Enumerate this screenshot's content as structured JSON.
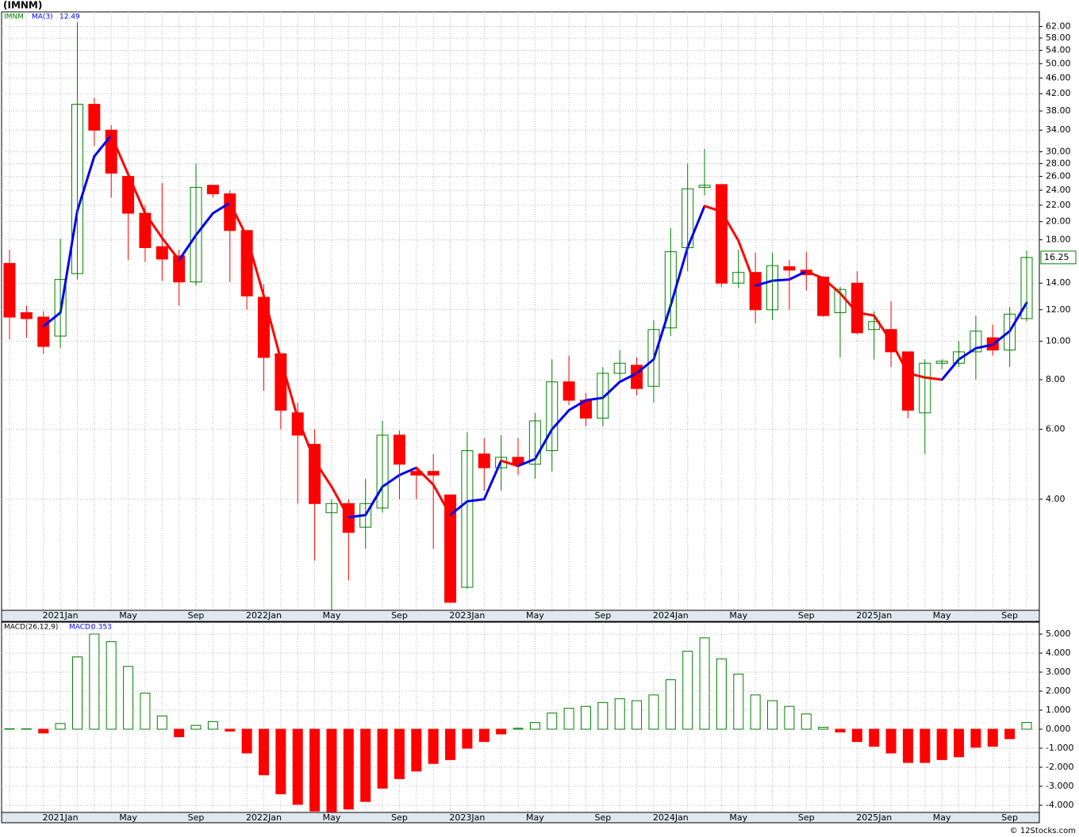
{
  "chart_data": [
    {
      "type": "candlestick",
      "title": "(IMNM)",
      "name": "IMNM",
      "categories": [
        null,
        null,
        null,
        "2021Jan",
        null,
        null,
        null,
        "May",
        null,
        null,
        null,
        "Sep",
        null,
        null,
        null,
        "2022Jan",
        null,
        null,
        null,
        "May",
        null,
        null,
        null,
        "Sep",
        null,
        null,
        null,
        "2023Jan",
        null,
        null,
        null,
        "May",
        null,
        null,
        null,
        "Sep",
        null,
        null,
        null,
        "2024Jan",
        null,
        null,
        null,
        "May",
        null,
        null,
        null,
        "Sep",
        null,
        null,
        null,
        "2025Jan",
        null,
        null,
        null,
        "May",
        null,
        null,
        null,
        "Sep",
        null
      ],
      "open": [
        15.7,
        11.8,
        11.5,
        10.3,
        14.8,
        39.5,
        34,
        26,
        21,
        17.3,
        16.4,
        14.1,
        24.7,
        23.5,
        19,
        12.9,
        9.3,
        6.6,
        5.5,
        3.7,
        3.9,
        3.4,
        3.8,
        5.8,
        4.7,
        4.7,
        4.1,
        2.4,
        5.2,
        4.8,
        5.1,
        4.9,
        5.3,
        7.9,
        7.1,
        6.4,
        8.3,
        8.7,
        7.7,
        10.8,
        17.2,
        24.4,
        24.8,
        14,
        14.9,
        12,
        15.4,
        15.1,
        14.5,
        11.8,
        14,
        10.7,
        10.7,
        9.4,
        6.6,
        8.8,
        8.8,
        9.4,
        10.2,
        9.5,
        11.4
      ],
      "high": [
        17,
        12.3,
        11.9,
        18.1,
        63.5,
        41,
        35,
        26.8,
        22,
        25,
        17,
        28,
        24.7,
        24,
        19,
        13.9,
        9.3,
        7,
        6,
        4.0,
        4.0,
        4.5,
        6.3,
        5.95,
        4.8,
        5.2,
        4.1,
        5.9,
        5.7,
        5.8,
        5.7,
        6.6,
        9,
        9.2,
        7.4,
        8.6,
        9.5,
        9.1,
        11.3,
        19.3,
        28,
        30.5,
        24.8,
        17,
        16.7,
        16.7,
        16,
        16.8,
        14.6,
        13.7,
        15,
        11.9,
        12.6,
        9.4,
        9,
        9.0,
        10,
        11.6,
        11,
        12.2,
        16.9
      ],
      "low": [
        10.1,
        10.2,
        9.3,
        9.6,
        14.3,
        31,
        23,
        16,
        15.8,
        14.2,
        12.3,
        13.8,
        23,
        14.1,
        12,
        7.5,
        6,
        3.9,
        2.8,
        2.1,
        2.5,
        3.0,
        3.7,
        4.0,
        4.0,
        3.0,
        2.19,
        2.38,
        4.2,
        4.2,
        4.6,
        4.5,
        4.7,
        6.9,
        6.1,
        6.1,
        8.0,
        7.3,
        7.0,
        10.3,
        15,
        23.3,
        13.7,
        13.6,
        11.1,
        11.3,
        12,
        13.4,
        11.5,
        9.1,
        10.4,
        9.0,
        8.6,
        6.4,
        5.2,
        8.5,
        8.6,
        8.0,
        9.2,
        8.6,
        11.2
      ],
      "close": [
        11.5,
        11.4,
        9.7,
        14.3,
        39.5,
        34,
        26.5,
        21,
        17.2,
        16.1,
        14.1,
        24.4,
        23.5,
        19,
        13,
        9.1,
        6.7,
        5.8,
        3.9,
        3.9,
        3.3,
        3.9,
        5.8,
        4.9,
        4.6,
        4.6,
        2.2,
        5.3,
        4.8,
        5.1,
        4.9,
        6.3,
        7.9,
        7.1,
        6.4,
        8.3,
        8.8,
        7.6,
        10.7,
        16.8,
        24.2,
        24.7,
        14,
        14.9,
        12,
        15.5,
        15.1,
        14.7,
        11.6,
        13.5,
        10.5,
        11.2,
        9.4,
        6.7,
        8.8,
        8.9,
        9.4,
        10.6,
        9.5,
        11.7,
        16.25
      ],
      "up_color": "#008000",
      "down_color": "#ff0000",
      "ma": {
        "name": "MA(3)",
        "up_color": "#0000ee",
        "down_color": "#ff0000",
        "values": [
          null,
          null,
          10.9,
          11.8,
          21.3,
          29.2,
          33,
          26.3,
          21,
          18.2,
          16,
          18.5,
          21,
          22.3,
          18.3,
          13,
          9,
          6.4,
          5.0,
          4.3,
          3.6,
          3.65,
          4.3,
          4.6,
          4.8,
          4.35,
          3.65,
          3.95,
          4.0,
          5.0,
          4.85,
          5.05,
          6.0,
          6.7,
          7.1,
          7.2,
          7.9,
          8.3,
          9,
          12.3,
          17.2,
          21.9,
          21.2,
          17.9,
          13.8,
          14.2,
          14.3,
          15,
          14.4,
          13.2,
          11.8,
          11.6,
          10,
          8.3,
          8.1,
          8.0,
          9,
          9.6,
          9.8,
          10.6,
          12.49
        ]
      },
      "log_scale": true,
      "grid": true,
      "ylim": [
        2.1,
        67.5
      ],
      "yticks": [
        {
          "value": 4,
          "label": "4.00"
        },
        {
          "value": 6,
          "label": "6.00"
        },
        {
          "value": 8,
          "label": "8.00"
        },
        {
          "value": 10,
          "label": "10.00"
        },
        {
          "value": 12,
          "label": "12.00"
        },
        {
          "value": 14,
          "label": "14.00"
        },
        {
          "value": 18,
          "label": "18.00"
        },
        {
          "value": 20,
          "label": "20.00"
        },
        {
          "value": 22,
          "label": "22.00"
        },
        {
          "value": 24,
          "label": "24.00"
        },
        {
          "value": 26,
          "label": "26.00"
        },
        {
          "value": 28,
          "label": "28.00"
        },
        {
          "value": 30,
          "label": "30.00"
        },
        {
          "value": 34,
          "label": "34.00"
        },
        {
          "value": 38,
          "label": "38.00"
        },
        {
          "value": 42,
          "label": "42.00"
        },
        {
          "value": 46,
          "label": "46.00"
        },
        {
          "value": 50,
          "label": "50.00"
        },
        {
          "value": 54,
          "label": "54.00"
        },
        {
          "value": 58,
          "label": "58.00"
        },
        {
          "value": 62,
          "label": "62.00"
        }
      ]
    },
    {
      "type": "bar",
      "name": "MACD(26,12,9)",
      "value_name": "MACD:",
      "values": [
        0.02,
        0.02,
        -0.2,
        0.3,
        3.8,
        5.0,
        4.6,
        3.3,
        1.9,
        0.7,
        -0.4,
        0.2,
        0.4,
        -0.1,
        -1.25,
        -2.4,
        -3.4,
        -3.95,
        -4.3,
        -4.35,
        -4.2,
        -3.8,
        -3.1,
        -2.6,
        -2.2,
        -1.8,
        -1.6,
        -1.0,
        -0.65,
        -0.25,
        0.05,
        0.35,
        0.85,
        1.1,
        1.2,
        1.4,
        1.6,
        1.5,
        1.8,
        2.6,
        4.1,
        4.8,
        3.7,
        2.9,
        1.8,
        1.5,
        1.2,
        0.8,
        0.1,
        -0.15,
        -0.65,
        -0.9,
        -1.25,
        -1.75,
        -1.75,
        -1.6,
        -1.45,
        -0.95,
        -0.9,
        -0.5,
        0.353
      ],
      "up_color": "#008000",
      "down_color": "#ff0000",
      "grid": true,
      "ylim": [
        -4.375,
        5.625
      ],
      "yticks": [
        {
          "value": -4,
          "label": "-4.000"
        },
        {
          "value": -3,
          "label": "-3.000"
        },
        {
          "value": -2,
          "label": "-2.000"
        },
        {
          "value": -1,
          "label": "-1.000"
        },
        {
          "value": 0,
          "label": "0.000"
        },
        {
          "value": 1,
          "label": "1.000"
        },
        {
          "value": 2,
          "label": "2.000"
        },
        {
          "value": 3,
          "label": "3.000"
        },
        {
          "value": 4,
          "label": "4.000"
        },
        {
          "value": 5,
          "label": "5.000"
        }
      ]
    }
  ],
  "footer": "© 12Stocks.com"
}
